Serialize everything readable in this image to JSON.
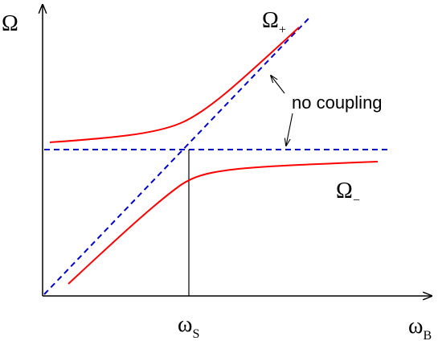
{
  "labels": {
    "y_axis": "Ω",
    "x_axis_symbol": "ω",
    "x_axis_sub": "B",
    "omega_s_symbol": "ω",
    "omega_s_sub": "S",
    "upper_branch_symbol": "Ω",
    "upper_branch_sub": "+",
    "lower_branch_symbol": "Ω",
    "lower_branch_sub": "−",
    "annotation": "no coupling"
  },
  "colors": {
    "coupled_curves": "#ff0000",
    "uncoupled_lines": "#0000cc",
    "axes": "#000000"
  },
  "legend_semantics": {
    "red_solid": "coupled modes",
    "blue_dashed": "no coupling"
  }
}
